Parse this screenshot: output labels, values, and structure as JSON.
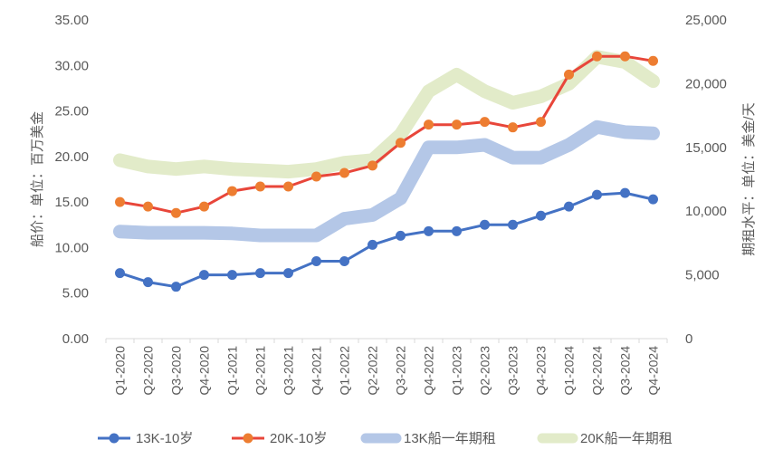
{
  "chart_data": {
    "type": "line",
    "categories": [
      "Q1-2020",
      "Q2-2020",
      "Q3-2020",
      "Q4-2020",
      "Q1-2021",
      "Q2-2021",
      "Q3-2021",
      "Q4-2021",
      "Q1-2022",
      "Q2-2022",
      "Q3-2022",
      "Q4-2022",
      "Q1-2023",
      "Q2-2023",
      "Q3-2023",
      "Q4-2023",
      "Q1-2024",
      "Q2-2024",
      "Q3-2024",
      "Q4-2024"
    ],
    "ylabel_left": "船价：单位：百万美金",
    "ylabel_right": "期租水平：单位：美金/天",
    "ylim_left": [
      0,
      35
    ],
    "ylim_right": [
      0,
      25000
    ],
    "left_ticks": [
      "0.00",
      "5.00",
      "10.00",
      "15.00",
      "20.00",
      "25.00",
      "30.00",
      "35.00"
    ],
    "right_ticks": [
      "0",
      "5,000",
      "10,000",
      "15,000",
      "20,000",
      "25,000"
    ],
    "grid": false,
    "legend_position": "bottom",
    "series": [
      {
        "name": "13K-10岁",
        "axis": "left",
        "style": "line-marker",
        "color": "#4472C4",
        "values": [
          7.2,
          6.2,
          5.7,
          7.0,
          7.0,
          7.2,
          7.2,
          8.5,
          8.5,
          10.3,
          11.3,
          11.8,
          11.8,
          12.5,
          12.5,
          13.5,
          14.5,
          15.8,
          16.0,
          15.3
        ]
      },
      {
        "name": "20K-10岁",
        "axis": "left",
        "style": "line-marker",
        "color": "#ED7D31",
        "line_color": "#E8463A",
        "values": [
          15.0,
          14.5,
          13.8,
          14.5,
          16.2,
          16.7,
          16.7,
          17.8,
          18.2,
          19.0,
          21.5,
          23.5,
          23.5,
          23.8,
          23.2,
          23.8,
          29.0,
          31.0,
          31.0,
          30.5
        ]
      },
      {
        "name": "13K船一年期租",
        "axis": "right",
        "style": "band",
        "color": "#B4C7E7",
        "values": [
          8400,
          8300,
          8300,
          8300,
          8250,
          8100,
          8100,
          8100,
          9400,
          9700,
          11000,
          15000,
          15000,
          15200,
          14200,
          14200,
          15200,
          16600,
          16200,
          16100
        ]
      },
      {
        "name": "20K船一年期租",
        "axis": "right",
        "style": "band",
        "color": "#E2EBC9",
        "values": [
          14000,
          13500,
          13300,
          13500,
          13300,
          13200,
          13100,
          13300,
          13800,
          14000,
          16000,
          19400,
          20700,
          19400,
          18500,
          19000,
          20000,
          22100,
          21700,
          20200
        ]
      }
    ]
  },
  "colors": {
    "axis_text": "#595959",
    "axis_line": "#D9D9D9",
    "marker_blue": "#4472C4",
    "marker_orange": "#ED7D31",
    "line_red": "#E8463A"
  }
}
